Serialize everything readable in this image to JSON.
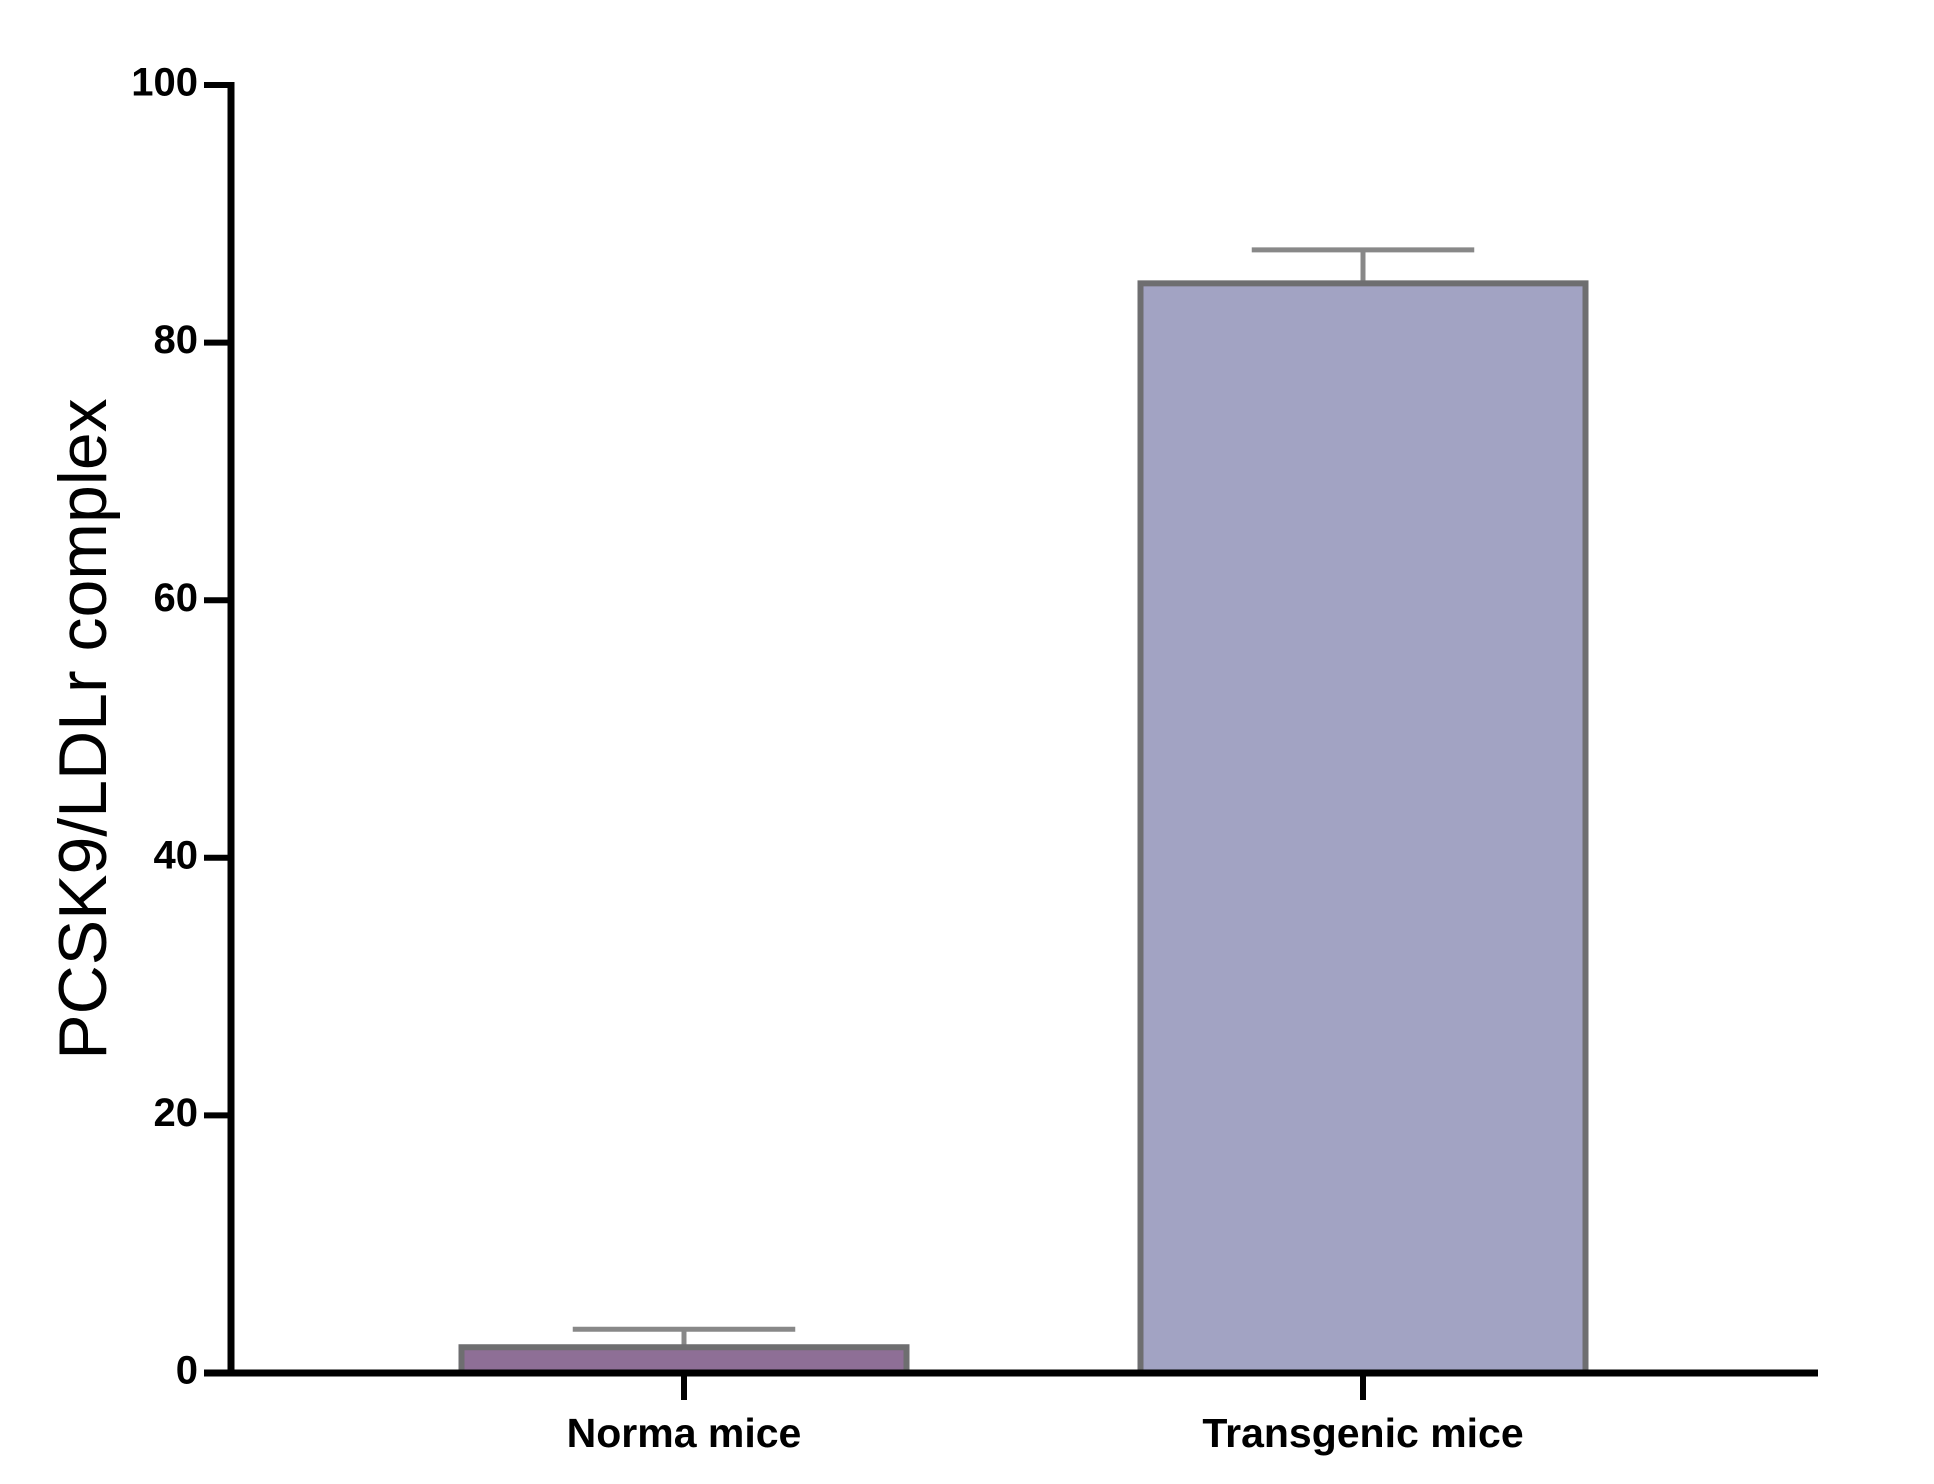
{
  "chart_data": {
    "type": "bar",
    "y_label": "PCSK9/LDLr complex",
    "categories": [
      "Norma mice",
      "Transgenic mice"
    ],
    "values": [
      2.0,
      84.6
    ],
    "errors": [
      1.4,
      2.6
    ],
    "colors": [
      "#8e6f96",
      "#a2a3c3"
    ],
    "ylim": [
      0,
      100
    ],
    "yticks": [
      0,
      20,
      40,
      60,
      80,
      100
    ],
    "grid": false
  }
}
